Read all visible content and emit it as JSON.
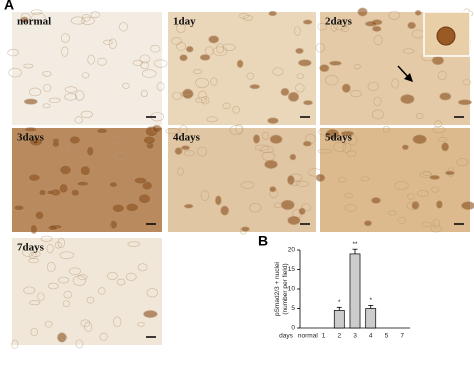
{
  "panel_labels": [
    "A",
    "B"
  ],
  "images": [
    {
      "label": "normal",
      "tone": "#f2ece2"
    },
    {
      "label": "1day",
      "tone": "#ead6b8"
    },
    {
      "label": "2days",
      "tone": "#e4caa6"
    },
    {
      "label": "3days",
      "tone": "#b98a5e"
    },
    {
      "label": "4days",
      "tone": "#e0c6a2"
    },
    {
      "label": "5days",
      "tone": "#dcba8e"
    },
    {
      "label": "7days",
      "tone": "#f0e7d9"
    }
  ],
  "chart_data": {
    "type": "bar",
    "y_label": [
      "pSmad2/3 + nuclei",
      "(number per field)"
    ],
    "x_label": "days",
    "categories": [
      "normal",
      "1",
      "2",
      "3",
      "4",
      "5",
      "7"
    ],
    "values": [
      0,
      0,
      4.5,
      19,
      5,
      0,
      0
    ],
    "errors": [
      null,
      null,
      0.8,
      1.2,
      0.8,
      null,
      null
    ],
    "significance": [
      null,
      null,
      "*",
      "**",
      "*",
      null,
      null
    ],
    "color": "#cccccc",
    "ylim": [
      0,
      20
    ],
    "yticks": [
      0,
      5,
      10,
      15,
      20
    ]
  }
}
